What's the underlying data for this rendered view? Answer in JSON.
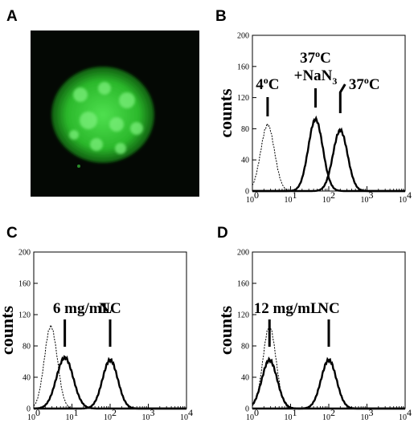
{
  "colors": {
    "background": "#ffffff",
    "ink": "#000000",
    "micrograph_bg": "#040804",
    "cell_fluorescence": "#2fc42f"
  },
  "panels": {
    "A": {
      "letter": "A",
      "image": "confocal micrograph of a single cell with green punctate fluorescence"
    },
    "B": {
      "letter": "B"
    },
    "C": {
      "letter": "C"
    },
    "D": {
      "letter": "D"
    }
  },
  "chart_data": [
    {
      "panel": "B",
      "type": "line",
      "xscale": "log",
      "xlim": [
        1,
        10000
      ],
      "ylim": [
        0,
        200
      ],
      "ylabel": "counts",
      "xlabel": "",
      "yticks": [
        "0",
        "40",
        "80",
        "120",
        "160",
        "200"
      ],
      "xticks": [
        {
          "base": "10",
          "exp": "0"
        },
        {
          "base": "10",
          "exp": "1"
        },
        {
          "base": "10",
          "exp": "2"
        },
        {
          "base": "10",
          "exp": "3"
        },
        {
          "base": "10",
          "exp": "4"
        }
      ],
      "annotations": [
        {
          "text": "4",
          "sup": "o",
          "tail": "C",
          "x": 2.5
        },
        {
          "text": "37",
          "sup": "o",
          "tail": "C",
          "line2": "+NaN",
          "sub": "3",
          "x": 45
        },
        {
          "text": "37",
          "sup": "o",
          "tail": "C",
          "x": 200
        }
      ],
      "series": [
        {
          "style": "dotted",
          "peak_x": 2.5,
          "peak_y": 85,
          "width": 0.18
        },
        {
          "style": "solid",
          "peak_x": 45,
          "peak_y": 92,
          "width": 0.19
        },
        {
          "style": "solid",
          "peak_x": 200,
          "peak_y": 78,
          "width": 0.19
        }
      ]
    },
    {
      "panel": "C",
      "type": "line",
      "xscale": "log",
      "xlim": [
        1,
        10000
      ],
      "ylim": [
        0,
        200
      ],
      "ylabel": "counts",
      "xlabel": "",
      "yticks": [
        "0",
        "40",
        "80",
        "120",
        "160",
        "200"
      ],
      "xticks": [
        {
          "base": "10",
          "exp": "0"
        },
        {
          "base": "10",
          "exp": "1"
        },
        {
          "base": "10",
          "exp": "2"
        },
        {
          "base": "10",
          "exp": "3"
        },
        {
          "base": "10",
          "exp": "4"
        }
      ],
      "annotations": [
        {
          "text": "6 mg/mL",
          "x": 6.5
        },
        {
          "text": "NC",
          "x": 100
        }
      ],
      "series": [
        {
          "style": "dotted",
          "peak_x": 2.8,
          "peak_y": 105,
          "width": 0.17
        },
        {
          "style": "solid",
          "peak_x": 6.5,
          "peak_y": 65,
          "width": 0.22
        },
        {
          "style": "solid",
          "peak_x": 100,
          "peak_y": 62,
          "width": 0.2
        }
      ]
    },
    {
      "panel": "D",
      "type": "line",
      "xscale": "log",
      "xlim": [
        1,
        10000
      ],
      "ylim": [
        0,
        200
      ],
      "ylabel": "counts",
      "xlabel": "",
      "yticks": [
        "0",
        "40",
        "80",
        "120",
        "160",
        "200"
      ],
      "xticks": [
        {
          "base": "10",
          "exp": "0"
        },
        {
          "base": "10",
          "exp": "1"
        },
        {
          "base": "10",
          "exp": "2"
        },
        {
          "base": "10",
          "exp": "3"
        },
        {
          "base": "10",
          "exp": "4"
        }
      ],
      "annotations": [
        {
          "text": "12 mg/mL",
          "x": 2.8
        },
        {
          "text": "NC",
          "x": 100
        }
      ],
      "series": [
        {
          "style": "dotted",
          "peak_x": 2.8,
          "peak_y": 105,
          "width": 0.17
        },
        {
          "style": "solid",
          "peak_x": 2.8,
          "peak_y": 62,
          "width": 0.2
        },
        {
          "style": "solid",
          "peak_x": 100,
          "peak_y": 62,
          "width": 0.2
        }
      ]
    }
  ]
}
